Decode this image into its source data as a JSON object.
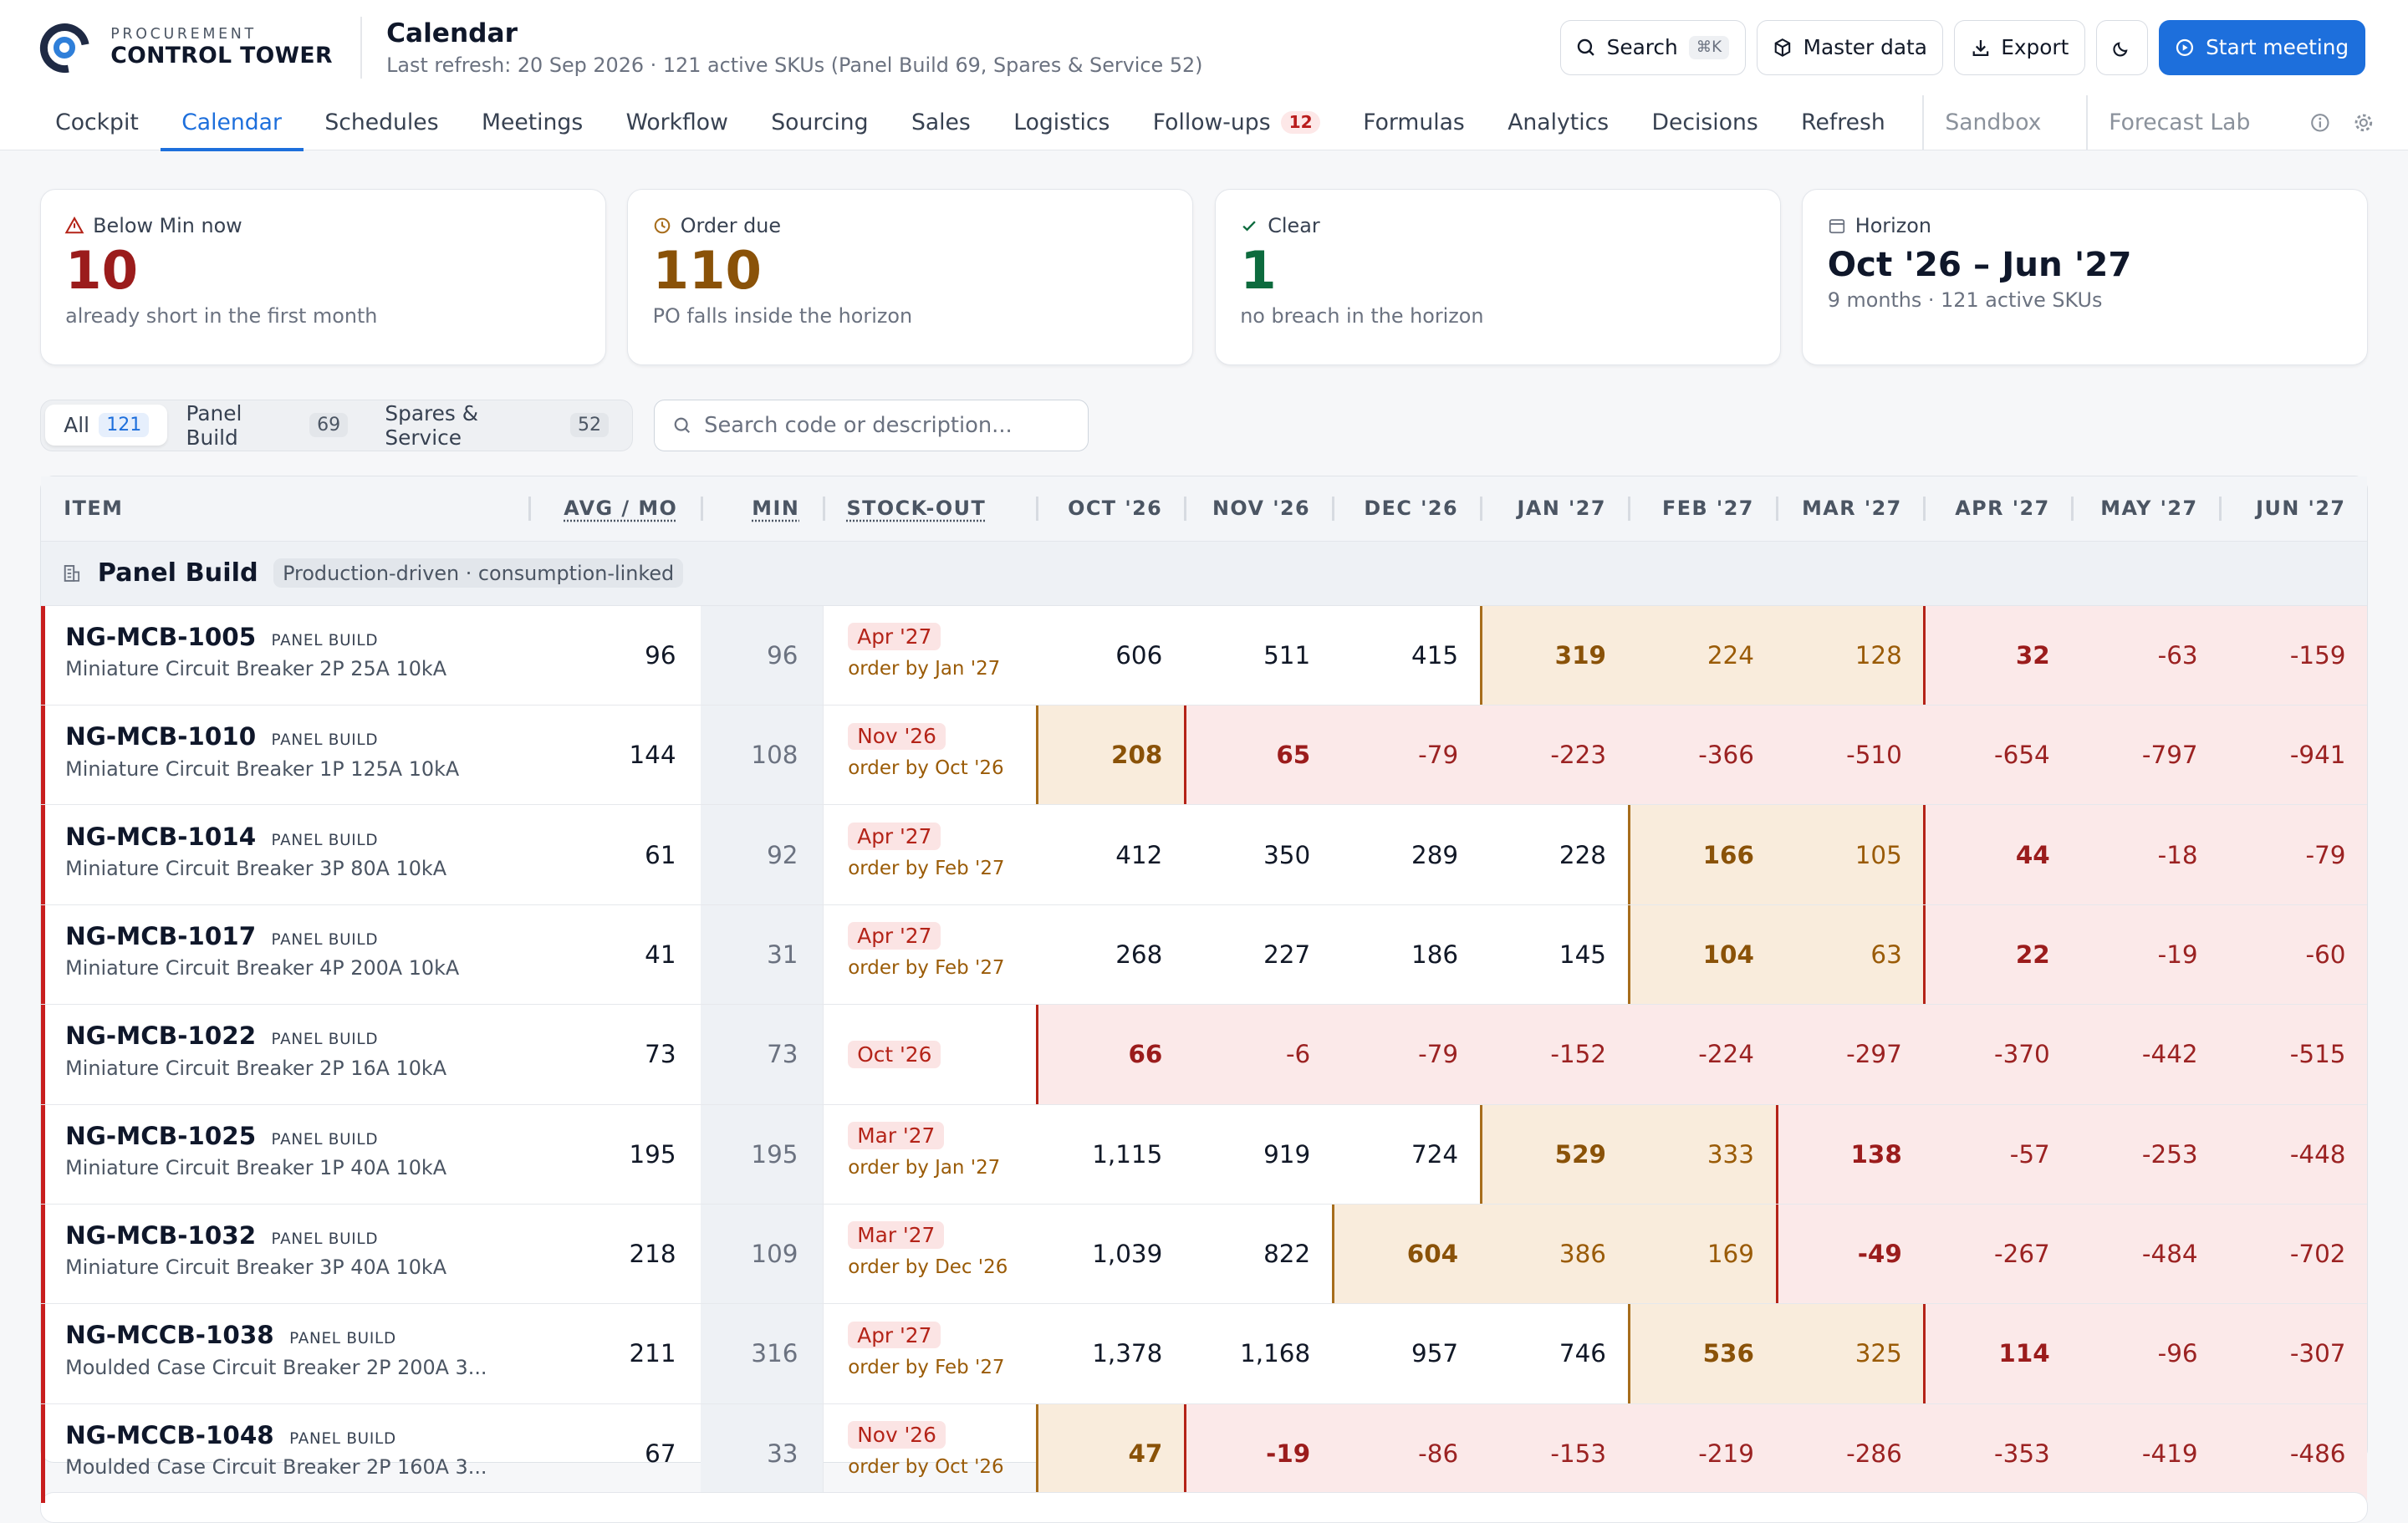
{
  "header": {
    "brand_kicker": "PROCUREMENT",
    "brand_name": "CONTROL TOWER",
    "title": "Calendar",
    "subtitle": "Last refresh: 20 Sep 2026 · 121 active SKUs (Panel Build 69, Spares & Service 52)",
    "buttons": {
      "search": "Search",
      "search_kbd": "⌘K",
      "master_data": "Master data",
      "export": "Export",
      "start_meeting": "Start meeting"
    }
  },
  "nav": {
    "tabs": [
      "Cockpit",
      "Calendar",
      "Schedules",
      "Meetings",
      "Workflow",
      "Sourcing",
      "Sales",
      "Logistics",
      "Follow-ups",
      "Formulas",
      "Analytics",
      "Decisions",
      "Refresh"
    ],
    "active": "Calendar",
    "followups_badge": "12",
    "extra_tabs": [
      "Sandbox",
      "Forecast Lab"
    ]
  },
  "cards": [
    {
      "label": "Below Min now",
      "value": "10",
      "sub": "already short in the first month",
      "color": "#9b1c1c"
    },
    {
      "label": "Order due",
      "value": "110",
      "sub": "PO falls inside the horizon",
      "color": "#8a5208"
    },
    {
      "label": "Clear",
      "value": "1",
      "sub": "no breach in the horizon",
      "color": "#0d6b3e"
    },
    {
      "label": "Horizon",
      "value": "Oct '26 – Jun '27",
      "sub": "9 months · 121 active SKUs"
    }
  ],
  "filters": {
    "segments": [
      {
        "label": "All",
        "count": "121"
      },
      {
        "label": "Panel Build",
        "count": "69"
      },
      {
        "label": "Spares & Service",
        "count": "52"
      }
    ],
    "search_placeholder": "Search code or description..."
  },
  "table": {
    "headers": {
      "item": "ITEM",
      "avg": "AVG / MO",
      "min": "MIN",
      "stockout": "STOCK-OUT"
    },
    "months": [
      "OCT '26",
      "NOV '26",
      "DEC '26",
      "JAN '27",
      "FEB '27",
      "MAR '27",
      "APR '27",
      "MAY '27",
      "JUN '27"
    ],
    "group": {
      "name": "Panel Build",
      "tag": "Production-driven · consumption-linked"
    },
    "rows": [
      {
        "code": "NG-MCB-1005",
        "tag": "PANEL BUILD",
        "desc": "Miniature Circuit Breaker 2P 25A 10kA",
        "avg": "96",
        "min": "96",
        "stockout": "Apr '27",
        "order_by": "order by Jan '27",
        "values": [
          "606",
          "511",
          "415",
          "319",
          "224",
          "128",
          "32",
          "-63",
          "-159"
        ],
        "order_month": 3,
        "stockout_month": 6
      },
      {
        "code": "NG-MCB-1010",
        "tag": "PANEL BUILD",
        "desc": "Miniature Circuit Breaker 1P 125A 10kA",
        "avg": "144",
        "min": "108",
        "stockout": "Nov '26",
        "order_by": "order by Oct '26",
        "values": [
          "208",
          "65",
          "-79",
          "-223",
          "-366",
          "-510",
          "-654",
          "-797",
          "-941"
        ],
        "order_month": 0,
        "stockout_month": 1
      },
      {
        "code": "NG-MCB-1014",
        "tag": "PANEL BUILD",
        "desc": "Miniature Circuit Breaker 3P 80A 10kA",
        "avg": "61",
        "min": "92",
        "stockout": "Apr '27",
        "order_by": "order by Feb '27",
        "values": [
          "412",
          "350",
          "289",
          "228",
          "166",
          "105",
          "44",
          "-18",
          "-79"
        ],
        "order_month": 4,
        "stockout_month": 6
      },
      {
        "code": "NG-MCB-1017",
        "tag": "PANEL BUILD",
        "desc": "Miniature Circuit Breaker 4P 200A 10kA",
        "avg": "41",
        "min": "31",
        "stockout": "Apr '27",
        "order_by": "order by Feb '27",
        "values": [
          "268",
          "227",
          "186",
          "145",
          "104",
          "63",
          "22",
          "-19",
          "-60"
        ],
        "order_month": 4,
        "stockout_month": 6
      },
      {
        "code": "NG-MCB-1022",
        "tag": "PANEL BUILD",
        "desc": "Miniature Circuit Breaker 2P 16A 10kA",
        "avg": "73",
        "min": "73",
        "stockout": "Oct '26",
        "order_by": "",
        "values": [
          "66",
          "-6",
          "-79",
          "-152",
          "-224",
          "-297",
          "-370",
          "-442",
          "-515"
        ],
        "order_month": -1,
        "stockout_month": 0
      },
      {
        "code": "NG-MCB-1025",
        "tag": "PANEL BUILD",
        "desc": "Miniature Circuit Breaker 1P 40A 10kA",
        "avg": "195",
        "min": "195",
        "stockout": "Mar '27",
        "order_by": "order by Jan '27",
        "values": [
          "1,115",
          "919",
          "724",
          "529",
          "333",
          "138",
          "-57",
          "-253",
          "-448"
        ],
        "order_month": 3,
        "stockout_month": 5
      },
      {
        "code": "NG-MCB-1032",
        "tag": "PANEL BUILD",
        "desc": "Miniature Circuit Breaker 3P 40A 10kA",
        "avg": "218",
        "min": "109",
        "stockout": "Mar '27",
        "order_by": "order by Dec '26",
        "values": [
          "1,039",
          "822",
          "604",
          "386",
          "169",
          "-49",
          "-267",
          "-484",
          "-702"
        ],
        "order_month": 2,
        "stockout_month": 5
      },
      {
        "code": "NG-MCCB-1038",
        "tag": "PANEL BUILD",
        "desc": "Moulded Case Circuit Breaker 2P 200A 3...",
        "avg": "211",
        "min": "316",
        "stockout": "Apr '27",
        "order_by": "order by Feb '27",
        "values": [
          "1,378",
          "1,168",
          "957",
          "746",
          "536",
          "325",
          "114",
          "-96",
          "-307"
        ],
        "order_month": 4,
        "stockout_month": 6
      },
      {
        "code": "NG-MCCB-1048",
        "tag": "PANEL BUILD",
        "desc": "Moulded Case Circuit Breaker 2P 160A 3...",
        "avg": "67",
        "min": "33",
        "stockout": "Nov '26",
        "order_by": "order by Oct '26",
        "values": [
          "47",
          "-19",
          "-86",
          "-153",
          "-219",
          "-286",
          "-353",
          "-419",
          "-486"
        ],
        "order_month": 0,
        "stockout_month": 1
      }
    ]
  }
}
